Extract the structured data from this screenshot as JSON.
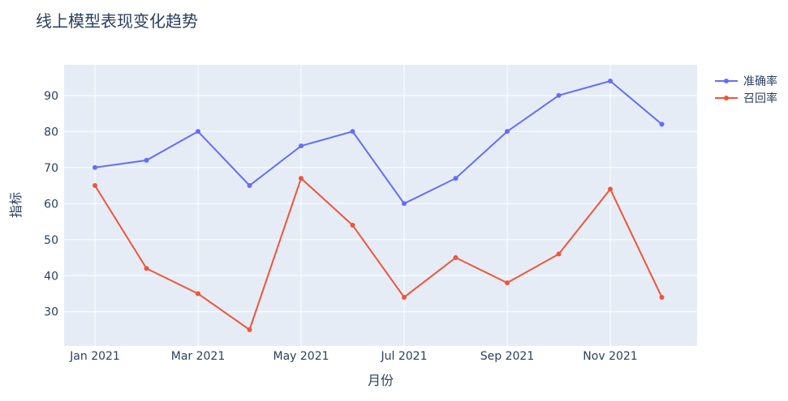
{
  "chart_data": {
    "type": "line",
    "title": "线上模型表现变化趋势",
    "xlabel": "月份",
    "ylabel": "指标",
    "x": [
      "2021-01",
      "2021-02",
      "2021-03",
      "2021-04",
      "2021-05",
      "2021-06",
      "2021-07",
      "2021-08",
      "2021-09",
      "2021-10",
      "2021-11",
      "2021-12"
    ],
    "x_ticks": [
      "Jan 2021",
      "Mar 2021",
      "May 2021",
      "Jul 2021",
      "Sep 2021",
      "Nov 2021"
    ],
    "y_ticks": [
      30,
      40,
      50,
      60,
      70,
      80,
      90
    ],
    "ylim": [
      20.5,
      98.5
    ],
    "grid": true,
    "legend_position": "top-right",
    "series": [
      {
        "name": "准确率",
        "color": "#636efa",
        "values": [
          70,
          72,
          80,
          65,
          76,
          80,
          60,
          67,
          80,
          90,
          94,
          82
        ]
      },
      {
        "name": "召回率",
        "color": "#ef553b",
        "values": [
          65,
          42,
          35,
          25,
          67,
          54,
          34,
          45,
          38,
          46,
          64,
          34
        ]
      }
    ]
  },
  "colors": {
    "plot_bg": "#e5ecf6",
    "grid": "#ffffff",
    "text": "#2a3f5f"
  }
}
